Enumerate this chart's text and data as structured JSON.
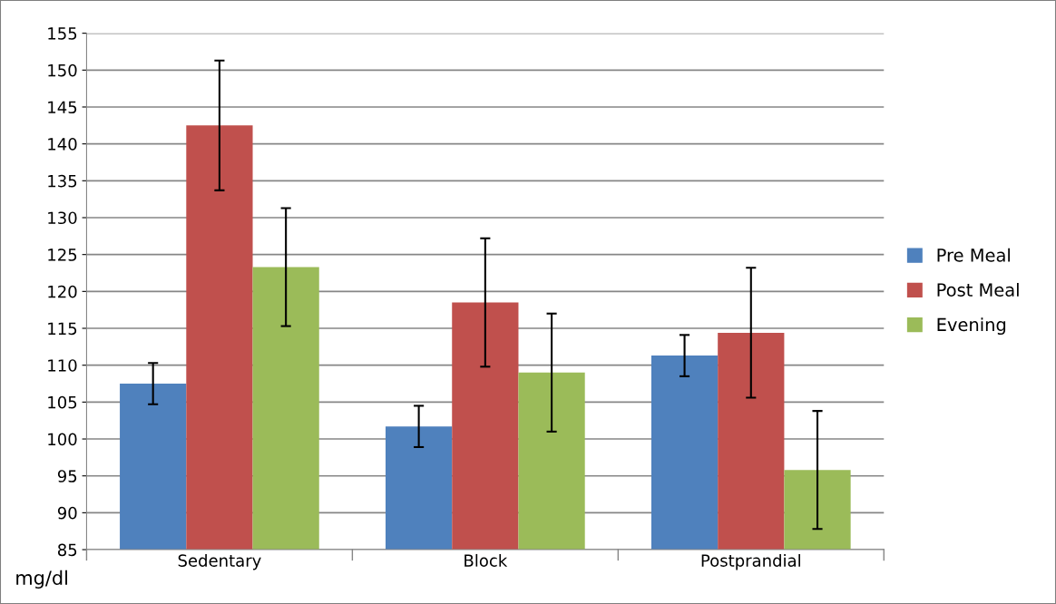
{
  "chart_data": {
    "type": "bar",
    "ylabel": "mg/dl",
    "categories": [
      "Sedentary",
      "Block",
      "Postprandial"
    ],
    "series": [
      {
        "name": "Pre Meal",
        "color": "#4f81bd",
        "values": [
          107.5,
          101.7,
          111.3
        ],
        "errors": [
          2.8,
          2.8,
          2.8
        ]
      },
      {
        "name": "Post Meal",
        "color": "#c0504d",
        "values": [
          142.5,
          118.5,
          114.4
        ],
        "errors": [
          8.8,
          8.7,
          8.8
        ]
      },
      {
        "name": "Evening",
        "color": "#9bbb59",
        "values": [
          123.3,
          109,
          95.8
        ],
        "errors": [
          8,
          8,
          8
        ]
      }
    ],
    "ylim": [
      85,
      155
    ],
    "yticks": [
      85,
      90,
      95,
      100,
      105,
      110,
      115,
      120,
      125,
      130,
      135,
      140,
      145,
      150,
      155
    ],
    "grid": "y",
    "legend": "right"
  }
}
